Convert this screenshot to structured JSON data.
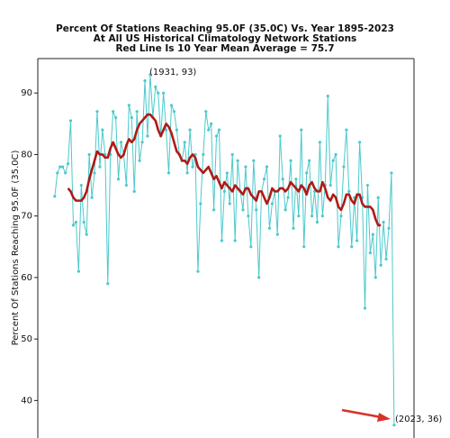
{
  "chart_data": {
    "type": "line",
    "title": [
      "Percent Of Stations Reaching 95.0F (35.0C) Vs. Year 1895-2023",
      "At All US Historical Climatology Network Stations",
      "Red Line Is 10 Year Mean  Average = 75.7"
    ],
    "y_label": "Percent Of Stations Reaching 95.0F (35.0C)",
    "x": [
      1895,
      1896,
      1897,
      1898,
      1899,
      1900,
      1901,
      1902,
      1903,
      1904,
      1905,
      1906,
      1907,
      1908,
      1909,
      1910,
      1911,
      1912,
      1913,
      1914,
      1915,
      1916,
      1917,
      1918,
      1919,
      1920,
      1921,
      1922,
      1923,
      1924,
      1925,
      1926,
      1927,
      1928,
      1929,
      1930,
      1931,
      1932,
      1933,
      1934,
      1935,
      1936,
      1937,
      1938,
      1939,
      1940,
      1941,
      1942,
      1943,
      1944,
      1945,
      1946,
      1947,
      1948,
      1949,
      1950,
      1951,
      1952,
      1953,
      1954,
      1955,
      1956,
      1957,
      1958,
      1959,
      1960,
      1961,
      1962,
      1963,
      1964,
      1965,
      1966,
      1967,
      1968,
      1969,
      1970,
      1971,
      1972,
      1973,
      1974,
      1975,
      1976,
      1977,
      1978,
      1979,
      1980,
      1981,
      1982,
      1983,
      1984,
      1985,
      1986,
      1987,
      1988,
      1989,
      1990,
      1991,
      1992,
      1993,
      1994,
      1995,
      1996,
      1997,
      1998,
      1999,
      2000,
      2001,
      2002,
      2003,
      2004,
      2005,
      2006,
      2007,
      2008,
      2009,
      2010,
      2011,
      2012,
      2013,
      2014,
      2015,
      2016,
      2017,
      2018,
      2019,
      2020,
      2021,
      2022,
      2023
    ],
    "series": [
      {
        "color": "#4cc9cc",
        "markers": true,
        "values": [
          73.2,
          77,
          78,
          78,
          77,
          78.5,
          85.5,
          68.5,
          69,
          61,
          75,
          69,
          67,
          80,
          73,
          77,
          87,
          78,
          84,
          80,
          59,
          80,
          87,
          86,
          76,
          82,
          80,
          75,
          88,
          86,
          74,
          87,
          79,
          82,
          92,
          83,
          93,
          86,
          91,
          90,
          83,
          90,
          84,
          77,
          88,
          87,
          84,
          80,
          79,
          82,
          77,
          84,
          78,
          80,
          61,
          72,
          80,
          87,
          84,
          85,
          71,
          83,
          84,
          66,
          74,
          77,
          72,
          80,
          66,
          79,
          74,
          71,
          78,
          70,
          65,
          79,
          71,
          60,
          74,
          76,
          78,
          68,
          72,
          74,
          67,
          83,
          76,
          71,
          73,
          79,
          68,
          76,
          70,
          84,
          65,
          77,
          79,
          70,
          74,
          69,
          82,
          70,
          75,
          89.5,
          75,
          79,
          80,
          65,
          70,
          78,
          84,
          74,
          65,
          73,
          66,
          82,
          73,
          55,
          75,
          64,
          67,
          60,
          73,
          62,
          69,
          63,
          68,
          77,
          36
        ]
      },
      {
        "color": "#b01a14",
        "markers": false,
        "values": [
          null,
          null,
          null,
          null,
          null,
          74.5,
          74,
          73,
          72.5,
          72.5,
          72.5,
          73,
          74,
          76,
          77.5,
          79,
          80.5,
          80,
          80,
          79.5,
          79.5,
          81,
          82,
          81,
          80,
          79.5,
          80,
          81.5,
          82.5,
          82,
          82.5,
          84,
          85,
          85.5,
          86,
          86.5,
          86.5,
          86,
          85.5,
          84,
          83,
          84,
          85,
          84.5,
          83.5,
          82,
          80.5,
          80,
          79,
          79,
          78.5,
          79.5,
          80,
          79.5,
          78,
          77.5,
          77,
          77.5,
          78,
          77,
          76,
          76.5,
          75.5,
          74.5,
          75.5,
          75,
          74.5,
          74,
          75,
          74.5,
          74,
          73.5,
          74.5,
          74.5,
          73.5,
          73,
          72.5,
          74,
          74,
          73,
          72,
          73,
          74.5,
          74,
          74,
          74.5,
          74.5,
          74,
          74.5,
          75.5,
          75,
          74.5,
          74,
          75,
          74.5,
          73.5,
          75,
          75.5,
          74.5,
          74,
          74,
          75.5,
          74.5,
          73,
          72.5,
          73.5,
          73,
          71.5,
          71,
          72,
          73.5,
          73.5,
          72.5,
          72,
          73.5,
          73.5,
          72,
          71.5,
          71.5,
          71.5,
          71,
          69.5,
          68.5,
          68.5,
          null,
          null,
          null,
          null,
          null
        ]
      }
    ],
    "xlim": [
      1888.6,
      2030.5
    ],
    "ylim": [
      33.9,
      95.6
    ],
    "yticks": [
      40,
      50,
      60,
      70,
      80,
      90
    ],
    "annotations": [
      "(1931, 93)",
      "(2023, 36)"
    ]
  }
}
